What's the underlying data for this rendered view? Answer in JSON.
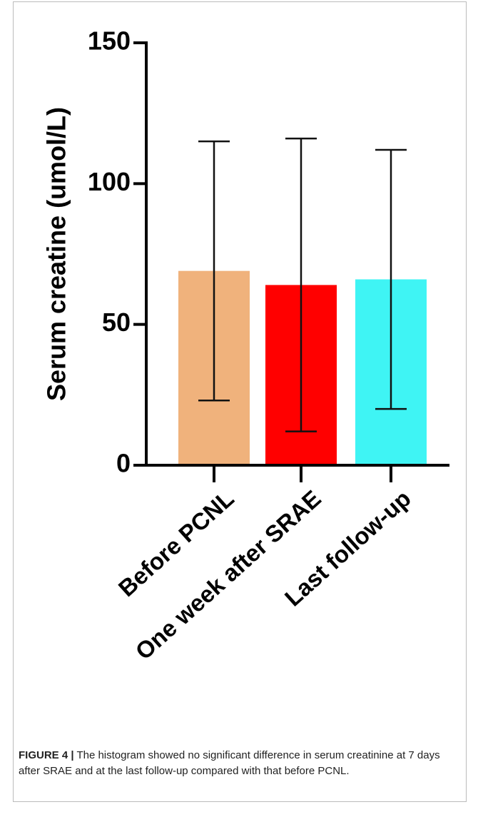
{
  "chart_data": {
    "type": "bar",
    "y_label": "Serum creatine (umol/L)",
    "categories": [
      "Before PCNL",
      "One week after SRAE",
      "Last follow-up"
    ],
    "values": [
      69,
      64,
      66
    ],
    "errors": [
      46,
      52,
      46
    ],
    "colors": [
      "#f0b27c",
      "#ff0000",
      "#3ff4f4"
    ],
    "ylim": [
      0,
      150
    ],
    "yticks": [
      0,
      50,
      100,
      150
    ]
  },
  "caption": {
    "label": "FIGURE 4 |",
    "text": "The histogram showed no significant difference in serum creatinine at 7 days after SRAE and at the last follow-up compared with that before PCNL."
  }
}
